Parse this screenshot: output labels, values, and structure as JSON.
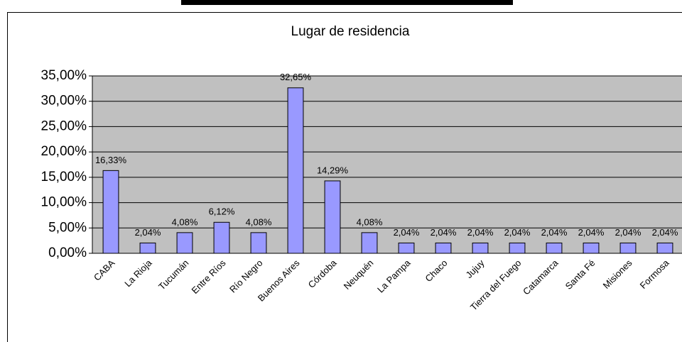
{
  "chart_data": {
    "type": "bar",
    "title": "Lugar de residencia",
    "categories": [
      "CABA",
      "La Rioja",
      "Tucumán",
      "Entre Ríos",
      "Río Negro",
      "Buenos Aires",
      "Córdoba",
      "Neuquén",
      "La Pampa",
      "Chaco",
      "Jujuy",
      "Tierra del Fuego",
      "Catamarca",
      "Santa Fé",
      "Misiones",
      "Formosa"
    ],
    "values": [
      16.33,
      2.04,
      4.08,
      6.12,
      4.08,
      32.65,
      14.29,
      4.08,
      2.04,
      2.04,
      2.04,
      2.04,
      2.04,
      2.04,
      2.04,
      2.04
    ],
    "value_labels": [
      "16,33%",
      "2,04%",
      "4,08%",
      "6,12%",
      "4,08%",
      "32,65%",
      "14,29%",
      "4,08%",
      "2,04%",
      "2,04%",
      "2,04%",
      "2,04%",
      "2,04%",
      "2,04%",
      "2,04%",
      "2,04%"
    ],
    "color": "#9999ff",
    "ylim": [
      0,
      35
    ],
    "yticks": [
      {
        "value": 0,
        "label": "0,00%"
      },
      {
        "value": 5,
        "label": "5,00%"
      },
      {
        "value": 10,
        "label": "10,00%"
      },
      {
        "value": 15,
        "label": "15,00%"
      },
      {
        "value": 20,
        "label": "20,00%"
      },
      {
        "value": 25,
        "label": "25,00%"
      },
      {
        "value": 30,
        "label": "30,00%"
      },
      {
        "value": 35,
        "label": "35,00%"
      }
    ],
    "grid": true
  }
}
